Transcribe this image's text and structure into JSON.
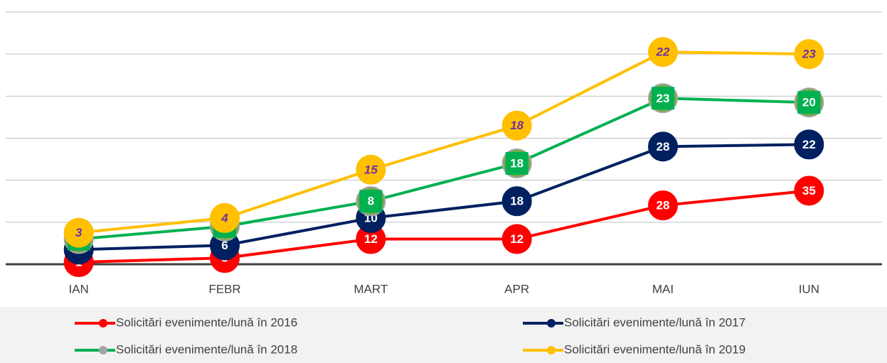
{
  "chart_data": {
    "type": "stacked_line",
    "categories": [
      "IAN",
      "FEBR",
      "MART",
      "APR",
      "MAI",
      "IUN"
    ],
    "series": [
      {
        "name": "Solicitări evenimente/lună în 2016",
        "color": "#ff0000",
        "label_color": "#ffffff",
        "values": [
          1,
          3,
          12,
          12,
          28,
          35
        ]
      },
      {
        "name": "Solicitări evenimente/lună în 2017",
        "color": "#002060",
        "label_color": "#ffffff",
        "values": [
          6,
          6,
          10,
          18,
          28,
          22
        ]
      },
      {
        "name": "Solicitări evenimente/lună în 2018",
        "color": "#00b050",
        "label_color": "#ffffff",
        "values": [
          5,
          9,
          8,
          18,
          23,
          20
        ]
      },
      {
        "name": "Solicitări evenimente/lună în 2019",
        "color": "#ffc000",
        "label_color": "#7030a0",
        "values": [
          3,
          4,
          15,
          18,
          22,
          23
        ]
      }
    ],
    "ylim": [
      0,
      120
    ],
    "yticks": [
      0,
      20,
      40,
      60,
      80,
      100,
      120
    ],
    "grid": true
  }
}
